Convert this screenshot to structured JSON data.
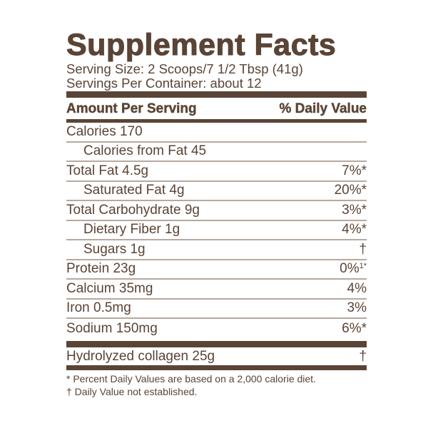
{
  "title": "Supplement Facts",
  "serving_size": "Serving Size: 2 Scoops/7 1/2 Tbsp (41g)",
  "servings_per_container": "Servings Per Container: about 12",
  "header": {
    "amount": "Amount Per Serving",
    "daily_value": "% Daily Value"
  },
  "rows": [
    {
      "name": "Calories 170",
      "dv": "",
      "indent": false
    },
    {
      "name": "Calories from Fat 45",
      "dv": "",
      "indent": true
    },
    {
      "name": "Total Fat 4.5g",
      "dv": "7%*",
      "indent": false
    },
    {
      "name": "Saturated Fat 4g",
      "dv": "20%*",
      "indent": true
    },
    {
      "name": "Total Carbohydrate 9g",
      "dv": "3%*",
      "indent": false
    },
    {
      "name": "Dietary Fiber 1g",
      "dv": "4%*",
      "indent": true
    },
    {
      "name": "Sugars 1g",
      "dv": "†",
      "indent": true
    },
    {
      "name": "Protein 23g",
      "dv": "0%",
      "dv_sup": "1*",
      "indent": false
    },
    {
      "name": "Calcium 35mg",
      "dv": "4%",
      "indent": false
    },
    {
      "name": "Iron 0.5mg",
      "dv": "3%",
      "indent": false
    },
    {
      "name": "Sodium 150mg",
      "dv": "6%*",
      "indent": false
    }
  ],
  "other": {
    "name": "Hydrolyzed collagen 25g",
    "dv": "†"
  },
  "footnotes": [
    "* Percent Daily Values are based on a 2,000 calorie diet.",
    "† Daily Value not established."
  ],
  "colors": {
    "text": "#5a4436",
    "divider": "#b8a89e"
  }
}
